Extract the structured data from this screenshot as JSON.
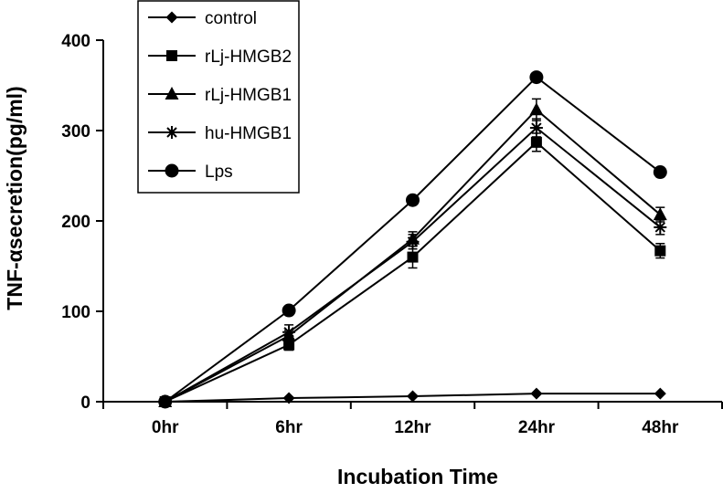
{
  "chart_data": {
    "type": "line",
    "categories": [
      "0hr",
      "6hr",
      "12hr",
      "24hr",
      "48hr"
    ],
    "xlabel": "Incubation Time",
    "ylabel": "TNF-αsecretion(pg/ml)",
    "ylim": [
      0,
      400
    ],
    "yticks": [
      0,
      100,
      200,
      300,
      400
    ],
    "grid": false,
    "legend_position": "top-left",
    "series": [
      {
        "name": "control",
        "marker": "diamond",
        "values": [
          0,
          4,
          6,
          9,
          9
        ],
        "errors": [
          0,
          0,
          0,
          0,
          0
        ]
      },
      {
        "name": "rLj-HMGB2",
        "marker": "square",
        "values": [
          0,
          63,
          160,
          287,
          167
        ],
        "errors": [
          0,
          6,
          12,
          10,
          8
        ]
      },
      {
        "name": "rLj-HMGB1",
        "marker": "triangle",
        "values": [
          0,
          73,
          180,
          323,
          207
        ],
        "errors": [
          0,
          6,
          8,
          12,
          8
        ]
      },
      {
        "name": "hu-HMGB1",
        "marker": "star",
        "values": [
          0,
          77,
          177,
          303,
          193
        ],
        "errors": [
          0,
          8,
          8,
          10,
          8
        ]
      },
      {
        "name": "Lps",
        "marker": "circle",
        "values": [
          0,
          101,
          223,
          359,
          254
        ],
        "errors": [
          0,
          4,
          5,
          4,
          5
        ]
      }
    ]
  }
}
